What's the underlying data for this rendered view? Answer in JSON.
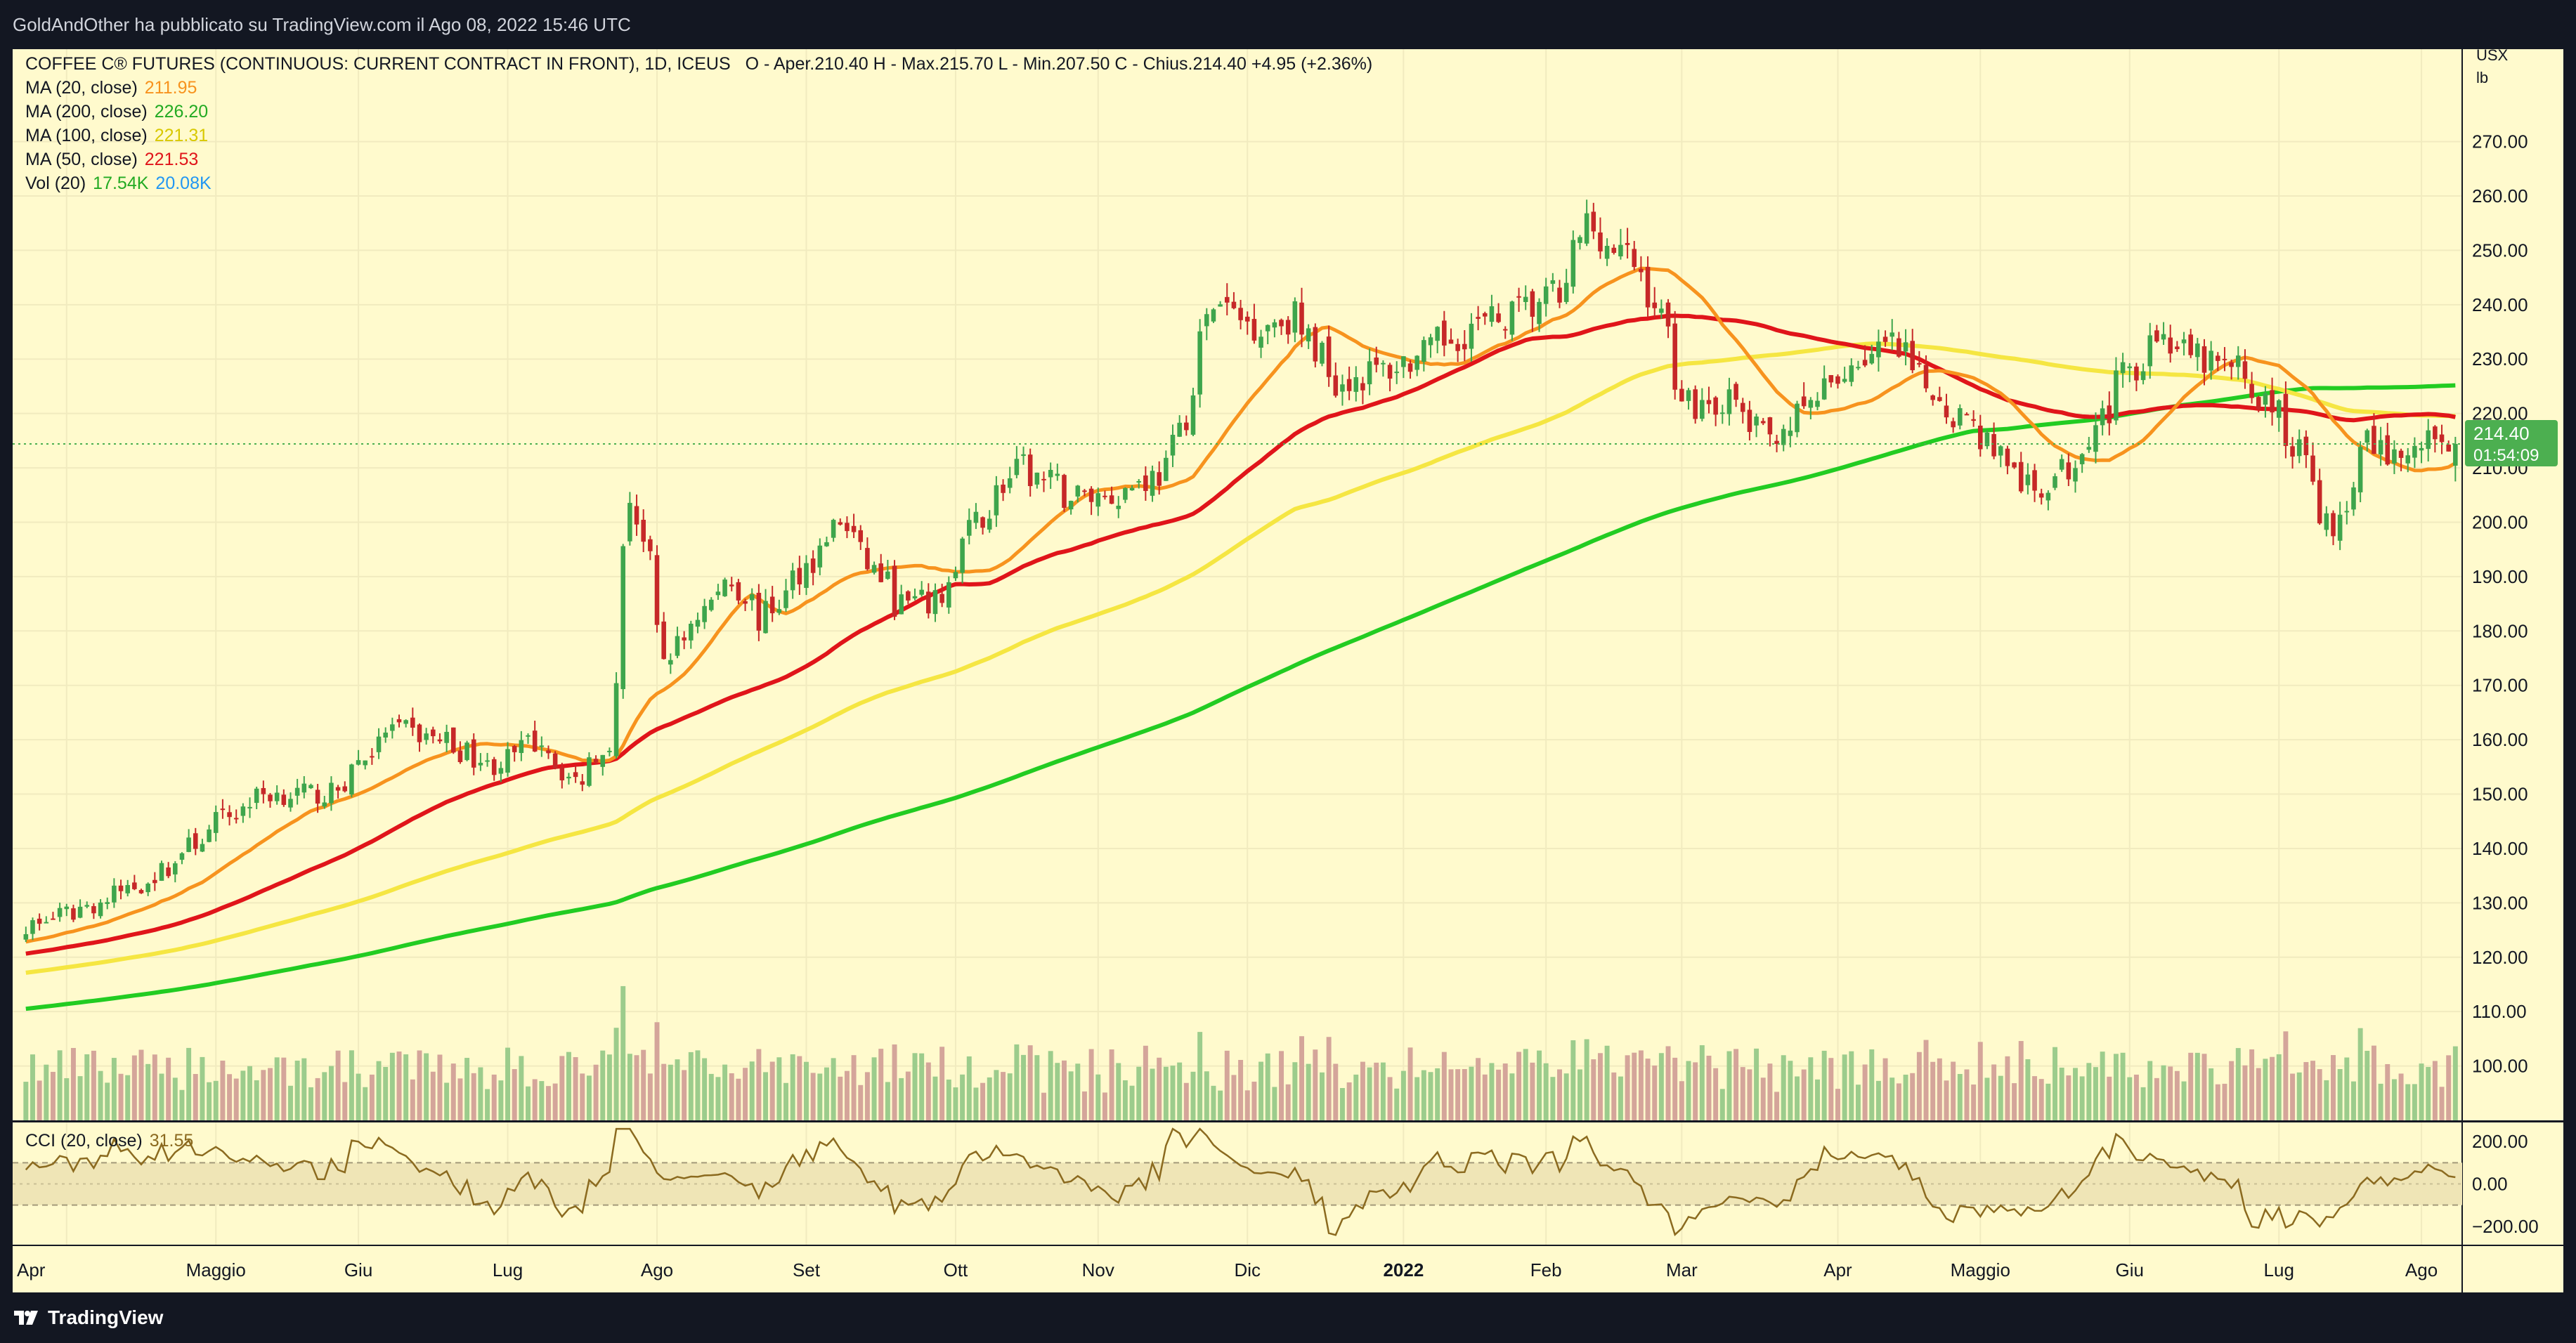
{
  "header": {
    "credit": "GoldAndOther ha pubblicato su TradingView.com il Ago 08, 2022 15:46 UTC"
  },
  "legend": {
    "title": "COFFEE C® FUTURES (CONTINUOUS: CURRENT CONTRACT IN FRONT), 1D, ICEUS",
    "ohlc": "O - Aper.210.40  H - Max.215.70  L - Min.207.50  C - Chius.214.40  +4.95 (+2.36%)",
    "indicators": [
      {
        "label": "MA (20, close)",
        "value": "211.95",
        "color": "#f7931e"
      },
      {
        "label": "MA (200, close)",
        "value": "226.20",
        "color": "#22cc22"
      },
      {
        "label": "MA (100, close)",
        "value": "221.31",
        "color": "#f5e642"
      },
      {
        "label": "MA (50, close)",
        "value": "221.53",
        "color": "#e0151a"
      }
    ],
    "volume": {
      "label": "Vol (20)",
      "value1": "17.54K",
      "value2": "20.08K"
    }
  },
  "cci": {
    "label": "CCI (20, close)",
    "value": "31.55"
  },
  "price_axis": {
    "unit": "USX",
    "unit2": "lb",
    "last_price": "214.40",
    "countdown": "01:54:09"
  },
  "footer": {
    "brand": "TradingView"
  },
  "colors": {
    "up": "#3ea54c",
    "down": "#c62828",
    "vol_up": "#9ccc8c",
    "vol_down": "#d4a59a",
    "ma20": "#f7931e",
    "ma50": "#e0151a",
    "ma100": "#f5e642",
    "ma200": "#22cc22",
    "cci": "#8b6a1f",
    "background": "#fffacd",
    "last_price_badge": "#4caf50"
  },
  "chart_data": {
    "type": "candlestick",
    "y_range": [
      90,
      287
    ],
    "y_ticks": [
      100,
      110,
      120,
      130,
      140,
      150,
      160,
      170,
      180,
      190,
      200,
      210,
      220,
      230,
      240,
      250,
      260,
      270
    ],
    "y_tick_labels": [
      "100.00",
      "110.00",
      "120.00",
      "130.00",
      "140.00",
      "150.00",
      "160.00",
      "170.00",
      "180.00",
      "190.00",
      "200.00",
      "210.00",
      "220.00",
      "230.00",
      "240.00",
      "250.00",
      "260.00",
      "270.00"
    ],
    "x_labels": [
      {
        "label": "Apr",
        "month": "2021-04",
        "bold": false
      },
      {
        "label": "Maggio",
        "month": "2021-05",
        "bold": false
      },
      {
        "label": "Giu",
        "month": "2021-06",
        "bold": false
      },
      {
        "label": "Lug",
        "month": "2021-07",
        "bold": false
      },
      {
        "label": "Ago",
        "month": "2021-08",
        "bold": false
      },
      {
        "label": "Set",
        "month": "2021-09",
        "bold": false
      },
      {
        "label": "Ott",
        "month": "2021-10",
        "bold": false
      },
      {
        "label": "Nov",
        "month": "2021-11",
        "bold": false
      },
      {
        "label": "Dic",
        "month": "2021-12",
        "bold": false
      },
      {
        "label": "2022",
        "month": "2022-01",
        "bold": true
      },
      {
        "label": "Feb",
        "month": "2022-02",
        "bold": false
      },
      {
        "label": "Mar",
        "month": "2022-03",
        "bold": false
      },
      {
        "label": "Apr",
        "month": "2022-04",
        "bold": false
      },
      {
        "label": "Maggio",
        "month": "2022-05",
        "bold": false
      },
      {
        "label": "Giu",
        "month": "2022-06",
        "bold": false
      },
      {
        "label": "Lug",
        "month": "2022-07",
        "bold": false
      },
      {
        "label": "Ago",
        "month": "2022-08",
        "bold": false
      }
    ],
    "close_anchors": [
      [
        "2021-03-26",
        126
      ],
      [
        "2021-04-08",
        130
      ],
      [
        "2021-04-20",
        135
      ],
      [
        "2021-05-03",
        145
      ],
      [
        "2021-05-12",
        150
      ],
      [
        "2021-05-26",
        150
      ],
      [
        "2021-06-07",
        162
      ],
      [
        "2021-06-18",
        160
      ],
      [
        "2021-06-28",
        155
      ],
      [
        "2021-07-08",
        160
      ],
      [
        "2021-07-15",
        152
      ],
      [
        "2021-07-22",
        160
      ],
      [
        "2021-07-27",
        205
      ],
      [
        "2021-08-03",
        175
      ],
      [
        "2021-08-16",
        190
      ],
      [
        "2021-08-23",
        182
      ],
      [
        "2021-09-08",
        200
      ],
      [
        "2021-09-20",
        185
      ],
      [
        "2021-09-28",
        185
      ],
      [
        "2021-10-06",
        200
      ],
      [
        "2021-10-15",
        210
      ],
      [
        "2021-10-25",
        205
      ],
      [
        "2021-11-03",
        205
      ],
      [
        "2021-11-15",
        210
      ],
      [
        "2021-11-24",
        240
      ],
      [
        "2021-12-03",
        236
      ],
      [
        "2021-12-10",
        238
      ],
      [
        "2021-12-20",
        226
      ],
      [
        "2021-12-29",
        228
      ],
      [
        "2022-01-05",
        230
      ],
      [
        "2022-01-14",
        235
      ],
      [
        "2022-01-24",
        238
      ],
      [
        "2022-02-04",
        242
      ],
      [
        "2022-02-09",
        255
      ],
      [
        "2022-02-21",
        245
      ],
      [
        "2022-03-02",
        222
      ],
      [
        "2022-03-11",
        222
      ],
      [
        "2022-03-18",
        215
      ],
      [
        "2022-03-28",
        222
      ],
      [
        "2022-04-06",
        230
      ],
      [
        "2022-04-13",
        232
      ],
      [
        "2022-04-20",
        225
      ],
      [
        "2022-05-03",
        215
      ],
      [
        "2022-05-12",
        205
      ],
      [
        "2022-05-19",
        210
      ],
      [
        "2022-05-30",
        225
      ],
      [
        "2022-06-06",
        235
      ],
      [
        "2022-06-14",
        230
      ],
      [
        "2022-06-23",
        228
      ],
      [
        "2022-07-01",
        220
      ],
      [
        "2022-07-08",
        210
      ],
      [
        "2022-07-13",
        197
      ],
      [
        "2022-07-20",
        214
      ],
      [
        "2022-07-28",
        212
      ],
      [
        "2022-08-03",
        216
      ],
      [
        "2022-08-08",
        214.4
      ]
    ],
    "volume_axis_max": 180000,
    "cci_ticks": [
      200,
      0,
      -200
    ],
    "cci_tick_labels": [
      "200.00",
      "0.00",
      "−200.00"
    ],
    "cci_band": [
      100,
      -100
    ]
  }
}
